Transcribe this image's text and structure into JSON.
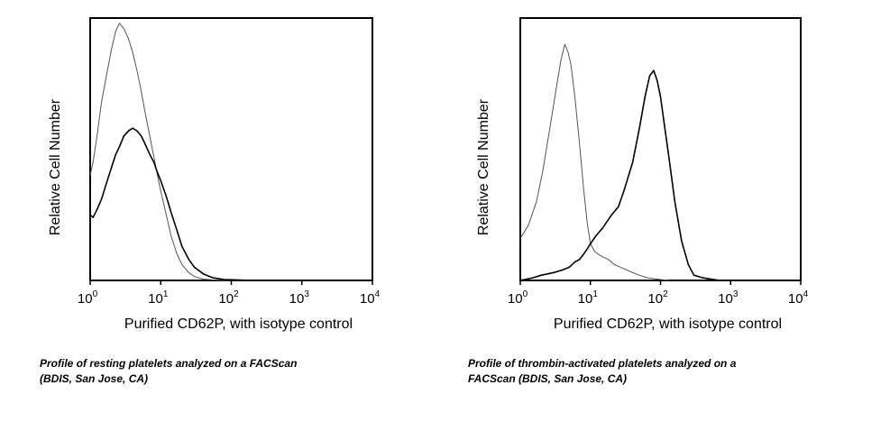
{
  "chart_data": [
    {
      "type": "line",
      "title": "",
      "xlabel": "Purified CD62P, with isotype control",
      "ylabel": "Relative Cell Number",
      "x_scale": "log",
      "xlim": [
        1,
        10000
      ],
      "ylim": [
        0,
        100
      ],
      "ticks": [
        {
          "base": "10",
          "exp": "0"
        },
        {
          "base": "10",
          "exp": "1"
        },
        {
          "base": "10",
          "exp": "2"
        },
        {
          "base": "10",
          "exp": "3"
        },
        {
          "base": "10",
          "exp": "4"
        }
      ],
      "grid": false,
      "series": [
        {
          "x": [
            1,
            1.1,
            1.25,
            1.45,
            1.7,
            2,
            2.3,
            2.6,
            3,
            3.5,
            4,
            4.6,
            5.3,
            6,
            7,
            8,
            9,
            10,
            12,
            14,
            17,
            20,
            25,
            30,
            40,
            55,
            80,
            120,
            200
          ],
          "y": [
            40,
            45,
            55,
            68,
            78,
            88,
            95,
            98,
            96,
            92,
            87,
            80,
            72,
            64,
            55,
            47,
            40,
            34,
            25,
            17,
            10,
            6,
            3,
            1.5,
            0.5,
            0.2,
            0,
            0,
            0
          ]
        },
        {
          "x": [
            1,
            1.1,
            1.25,
            1.45,
            1.7,
            2,
            2.3,
            2.6,
            3,
            3.5,
            4,
            4.6,
            5.3,
            6,
            7,
            8,
            9,
            10,
            12,
            14,
            17,
            20,
            25,
            30,
            40,
            55,
            80,
            120,
            200
          ],
          "y": [
            25,
            24,
            27,
            31,
            37,
            43,
            48,
            51,
            55,
            57,
            58,
            57,
            55,
            52,
            48,
            45,
            41,
            38,
            32,
            26,
            19,
            13,
            8,
            5,
            2.5,
            1,
            0.3,
            0.2,
            0
          ]
        }
      ],
      "caption": [
        "Profile of resting platelets analyzed on a FACScan",
        "(BDIS, San Jose, CA)"
      ]
    },
    {
      "type": "line",
      "title": "",
      "xlabel": "Purified CD62P, with isotype control",
      "ylabel": "Relative Cell Number",
      "x_scale": "log",
      "xlim": [
        1,
        10000
      ],
      "ylim": [
        0,
        100
      ],
      "ticks": [
        {
          "base": "10",
          "exp": "0"
        },
        {
          "base": "10",
          "exp": "1"
        },
        {
          "base": "10",
          "exp": "2"
        },
        {
          "base": "10",
          "exp": "3"
        },
        {
          "base": "10",
          "exp": "4"
        }
      ],
      "grid": false,
      "series": [
        {
          "x": [
            1,
            1.3,
            1.7,
            2.1,
            2.6,
            3.2,
            3.8,
            4.3,
            4.8,
            5.3,
            6,
            7,
            8,
            9,
            10,
            11.5,
            13,
            15,
            18,
            22,
            27,
            33,
            40,
            50,
            65,
            90,
            130
          ],
          "y": [
            16,
            21,
            30,
            42,
            57,
            72,
            84,
            90,
            87,
            82,
            70,
            52,
            35,
            22,
            14,
            11,
            10,
            9,
            8,
            6,
            5,
            4,
            3,
            2,
            1,
            0.5,
            0
          ]
        },
        {
          "x": [
            1,
            1.5,
            2,
            3,
            4,
            5,
            6,
            7,
            8,
            9,
            10,
            12,
            15,
            20,
            25,
            30,
            40,
            50,
            60,
            70,
            80,
            90,
            100,
            110,
            130,
            160,
            200,
            250,
            300,
            400,
            700
          ],
          "y": [
            0,
            1,
            2,
            3,
            4,
            5,
            7,
            8,
            10,
            12,
            14,
            17,
            20,
            25,
            28,
            34,
            45,
            58,
            70,
            78,
            80,
            76,
            70,
            62,
            48,
            30,
            15,
            6,
            2,
            1,
            0
          ]
        }
      ],
      "caption": [
        "Profile of thrombin-activated platelets analyzed on a",
        "FACScan (BDIS, San Jose, CA)"
      ]
    }
  ]
}
